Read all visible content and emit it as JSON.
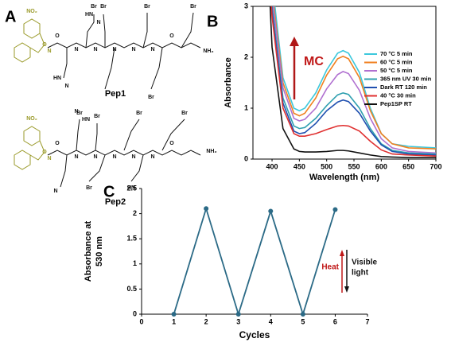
{
  "panel_labels": [
    "A",
    "B",
    "C"
  ],
  "structures": [
    {
      "name": "Pep1",
      "atoms": [
        "NO₂",
        "O",
        "N",
        "O",
        "N",
        "N",
        "N",
        "N",
        "N",
        "O",
        "NH₂",
        "Br",
        "Br",
        "Br",
        "Br",
        "Br",
        "HN",
        "N",
        "HN",
        "N"
      ]
    },
    {
      "name": "Pep2",
      "atoms": [
        "NO₂",
        "O",
        "N",
        "O",
        "N",
        "N",
        "N",
        "N",
        "N",
        "O",
        "NH₂",
        "Br",
        "Br",
        "Br",
        "Br",
        "Br",
        "HN",
        "N",
        "HN",
        "N"
      ]
    }
  ],
  "chart_data": [
    {
      "type": "line",
      "xlabel": "Wavelength (nm)",
      "ylabel": "Absorbance",
      "annotation": "MC",
      "x": [
        390,
        400,
        420,
        440,
        450,
        460,
        480,
        500,
        520,
        530,
        540,
        560,
        580,
        600,
        620,
        650,
        700
      ],
      "series": [
        {
          "name": "70  °C 5 min",
          "color": "#3cc8dc",
          "values": [
            4.5,
            3.5,
            1.6,
            1.0,
            0.95,
            1.0,
            1.3,
            1.75,
            2.08,
            2.13,
            2.08,
            1.7,
            1.0,
            0.5,
            0.3,
            0.25,
            0.22
          ]
        },
        {
          "name": "60  °C 5 min",
          "color": "#f08020",
          "values": [
            4.5,
            3.3,
            1.5,
            0.9,
            0.85,
            0.9,
            1.2,
            1.65,
            1.97,
            2.02,
            1.97,
            1.6,
            0.95,
            0.5,
            0.3,
            0.22,
            0.2
          ]
        },
        {
          "name": "50  °C 5 min",
          "color": "#b070d0",
          "values": [
            4.5,
            3.2,
            1.4,
            0.8,
            0.75,
            0.78,
            1.0,
            1.38,
            1.66,
            1.72,
            1.68,
            1.35,
            0.8,
            0.4,
            0.22,
            0.15,
            0.12
          ]
        },
        {
          "name": "365 nm UV 30 min",
          "color": "#30a0b0",
          "values": [
            4.5,
            3.0,
            1.2,
            0.65,
            0.6,
            0.62,
            0.8,
            1.05,
            1.26,
            1.3,
            1.27,
            1.0,
            0.6,
            0.3,
            0.17,
            0.12,
            0.1
          ]
        },
        {
          "name": "Dark RT 120 min",
          "color": "#2050b0",
          "values": [
            4.5,
            2.9,
            1.1,
            0.55,
            0.5,
            0.52,
            0.7,
            0.95,
            1.12,
            1.16,
            1.13,
            0.9,
            0.55,
            0.28,
            0.15,
            0.1,
            0.08
          ]
        },
        {
          "name": "40  °C 30 min",
          "color": "#e03030",
          "values": [
            4.5,
            2.8,
            1.0,
            0.5,
            0.45,
            0.45,
            0.5,
            0.58,
            0.65,
            0.66,
            0.65,
            0.55,
            0.35,
            0.18,
            0.1,
            0.08,
            0.06
          ]
        },
        {
          "name": "Pep1SP RT",
          "color": "#111111",
          "values": [
            4.5,
            2.2,
            0.6,
            0.2,
            0.15,
            0.14,
            0.14,
            0.15,
            0.17,
            0.17,
            0.16,
            0.12,
            0.08,
            0.05,
            0.04,
            0.03,
            0.03
          ]
        }
      ],
      "xlim": [
        365,
        700
      ],
      "xticks": [
        400,
        450,
        500,
        550,
        600,
        650,
        700
      ],
      "ylim": [
        0,
        3
      ],
      "yticks": [
        0,
        1,
        2,
        3
      ],
      "legend": "right"
    },
    {
      "type": "line",
      "xlabel": "Cycles",
      "ylabel": [
        "Absorbance at",
        "530 nm"
      ],
      "color": "#2b6a86",
      "x": [
        1,
        2,
        3,
        4,
        5,
        6
      ],
      "values": [
        0,
        2.1,
        0,
        2.05,
        0,
        2.08
      ],
      "xlim": [
        0,
        7
      ],
      "xticks": [
        0,
        1,
        2,
        3,
        4,
        5,
        6,
        7
      ],
      "ylim": [
        0,
        2.5
      ],
      "yticks": [
        0,
        0.5,
        1,
        1.5,
        2,
        2.5
      ],
      "annotations": [
        {
          "text": [
            "Heat"
          ],
          "color": "#c01818"
        },
        {
          "text": [
            "Visible",
            "light"
          ],
          "color": "#111111"
        }
      ]
    }
  ]
}
